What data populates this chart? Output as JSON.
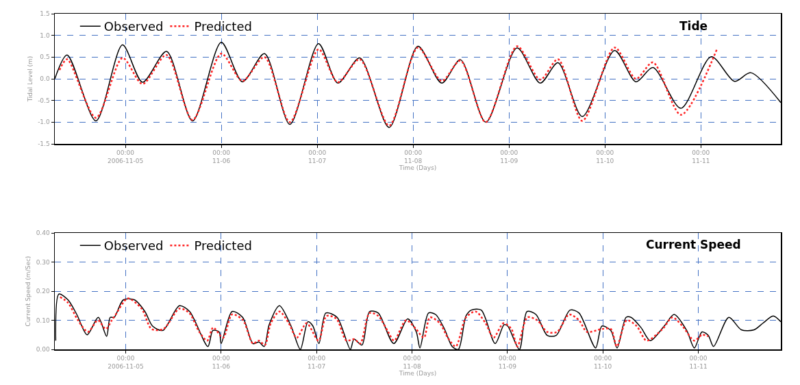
{
  "chart_data": [
    {
      "type": "line",
      "title": "Tide",
      "xlabel": "Time (Days)",
      "ylabel": "Tidal Level (m)",
      "xlim": [
        "2006-11-04T06:20",
        "2006-11-11T20:00"
      ],
      "xticks": [
        {
          "value": "2006-11-05T00:00",
          "label": "00:00\n2006-11-05"
        },
        {
          "value": "2006-11-06T00:00",
          "label": "00:00\n11-06"
        },
        {
          "value": "2006-11-07T00:00",
          "label": "00:00\n11-07"
        },
        {
          "value": "2006-11-08T00:00",
          "label": "00:00\n11-08"
        },
        {
          "value": "2006-11-09T00:00",
          "label": "00:00\n11-09"
        },
        {
          "value": "2006-11-10T00:00",
          "label": "00:00\n11-10"
        },
        {
          "value": "2006-11-11T00:00",
          "label": "00:00\n11-11"
        }
      ],
      "ylim": [
        -1.5,
        1.5
      ],
      "yticks": [
        {
          "value": -1.5,
          "label": "-1.5"
        },
        {
          "value": -1,
          "label": "-1.0"
        },
        {
          "value": -0.5,
          "label": "-0.5"
        },
        {
          "value": 0,
          "label": "0.0"
        },
        {
          "value": 0.5,
          "label": "0.5"
        },
        {
          "value": 1,
          "label": "1.0"
        },
        {
          "value": 1.5,
          "label": "1.5"
        }
      ],
      "grid": true,
      "legend": "top left",
      "series": [
        {
          "name": "Observed",
          "color": "#000000",
          "line_style": "solid",
          "x": [
            "2006-11-04T06:20",
            "2006-11-04T09:25",
            "2006-11-04T16:38",
            "2006-11-04T23:17",
            "2006-11-05T04:17",
            "2006-11-05T10:17",
            "2006-11-05T16:48",
            "2006-11-06T00:00",
            "2006-11-06T05:17",
            "2006-11-06T10:48",
            "2006-11-06T17:09",
            "2006-11-07T00:20",
            "2006-11-07T05:09",
            "2006-11-07T10:38",
            "2006-11-07T18:00",
            "2006-11-08T01:12",
            "2006-11-08T07:09",
            "2006-11-08T11:50",
            "2006-11-08T18:10",
            "2006-11-09T02:00",
            "2006-11-09T07:48",
            "2006-11-09T12:15",
            "2006-11-09T18:20",
            "2006-11-10T02:25",
            "2006-11-10T07:45",
            "2006-11-10T12:00",
            "2006-11-10T19:00",
            "2006-11-11T02:35",
            "2006-11-11T08:25",
            "2006-11-11T12:30",
            "2006-11-11T20:00"
          ],
          "values": [
            0.0,
            0.55,
            -0.97,
            0.78,
            -0.08,
            0.63,
            -0.97,
            0.84,
            -0.07,
            0.58,
            -1.05,
            0.81,
            -0.1,
            0.48,
            -1.12,
            0.75,
            -0.1,
            0.44,
            -1.0,
            0.71,
            -0.1,
            0.37,
            -0.87,
            0.65,
            -0.07,
            0.26,
            -0.68,
            0.51,
            -0.06,
            0.14,
            -0.55
          ]
        },
        {
          "name": "Predicted",
          "color": "#ff2020",
          "line_style": "dotted",
          "x": [
            "2006-11-04T07:30",
            "2006-11-04T09:25",
            "2006-11-04T16:38",
            "2006-11-04T23:17",
            "2006-11-05T04:17",
            "2006-11-05T10:17",
            "2006-11-05T16:48",
            "2006-11-06T00:00",
            "2006-11-06T05:17",
            "2006-11-06T10:48",
            "2006-11-06T17:09",
            "2006-11-07T00:20",
            "2006-11-07T05:09",
            "2006-11-07T10:38",
            "2006-11-07T18:00",
            "2006-11-08T01:12",
            "2006-11-08T07:09",
            "2006-11-08T11:50",
            "2006-11-08T18:10",
            "2006-11-09T02:00",
            "2006-11-09T07:48",
            "2006-11-09T12:15",
            "2006-11-09T18:20",
            "2006-11-10T02:25",
            "2006-11-10T07:45",
            "2006-11-10T12:00",
            "2006-11-10T19:00",
            "2006-11-11T04:00"
          ],
          "values": [
            0.2,
            0.45,
            -0.9,
            0.48,
            -0.12,
            0.55,
            -0.95,
            0.58,
            -0.05,
            0.5,
            -1.0,
            0.68,
            -0.08,
            0.45,
            -1.08,
            0.72,
            -0.05,
            0.42,
            -1.0,
            0.75,
            -0.02,
            0.45,
            -0.97,
            0.72,
            0.0,
            0.38,
            -0.83,
            0.68
          ]
        }
      ]
    },
    {
      "type": "line",
      "title": "Current Speed",
      "xlabel": "Time (Days)",
      "ylabel": "Current Speed (m/Sec)",
      "xlim": [
        "2006-11-04T06:10",
        "2006-11-11T20:45"
      ],
      "xticks": [
        {
          "value": "2006-11-05T00:00",
          "label": "00:00\n2006-11-05"
        },
        {
          "value": "2006-11-06T00:00",
          "label": "00:00\n11-06"
        },
        {
          "value": "2006-11-07T00:00",
          "label": "00:00\n11-07"
        },
        {
          "value": "2006-11-08T00:00",
          "label": "00:00\n11-08"
        },
        {
          "value": "2006-11-09T00:00",
          "label": "00:00\n11-09"
        },
        {
          "value": "2006-11-10T00:00",
          "label": "00:00\n11-10"
        },
        {
          "value": "2006-11-11T00:00",
          "label": "00:00\n11-11"
        }
      ],
      "ylim": [
        0,
        0.4
      ],
      "yticks": [
        {
          "value": 0,
          "label": "0.00"
        },
        {
          "value": 0.1,
          "label": "0.10"
        },
        {
          "value": 0.2,
          "label": "0.20"
        },
        {
          "value": 0.3,
          "label": "0.30"
        },
        {
          "value": 0.4,
          "label": "0.40"
        }
      ],
      "grid": true,
      "legend": "top left",
      "series": [
        {
          "name": "Observed",
          "color": "#000000",
          "line_style": "solid",
          "x": [
            "2006-11-04T06:24",
            "2006-11-04T07:12",
            "2006-11-04T09:30",
            "2006-11-04T11:42",
            "2006-11-04T14:18",
            "2006-11-04T17:06",
            "2006-11-04T19:12",
            "2006-11-04T20:06",
            "2006-11-04T21:06",
            "2006-11-04T23:24",
            "2006-11-05T02:15",
            "2006-11-05T04:50",
            "2006-11-05T06:45",
            "2006-11-05T09:20",
            "2006-11-05T13:30",
            "2006-11-05T16:05",
            "2006-11-05T20:40",
            "2006-11-05T21:55",
            "2006-11-05T23:30",
            "2006-11-06T00:00",
            "2006-11-06T02:45",
            "2006-11-06T05:25",
            "2006-11-06T08:00",
            "2006-11-06T09:30",
            "2006-11-06T10:50",
            "2006-11-06T12:05",
            "2006-11-06T14:40",
            "2006-11-06T17:35",
            "2006-11-06T19:55",
            "2006-11-06T21:50",
            "2006-11-06T23:05",
            "2006-11-07T00:35",
            "2006-11-07T02:20",
            "2006-11-07T05:10",
            "2006-11-07T08:30",
            "2006-11-07T09:25",
            "2006-11-07T11:25",
            "2006-11-07T13:20",
            "2006-11-07T15:30",
            "2006-11-07T19:25",
            "2006-11-07T22:55",
            "2006-11-08T01:05",
            "2006-11-08T02:00",
            "2006-11-08T04:10",
            "2006-11-08T05:55",
            "2006-11-08T08:10",
            "2006-11-08T10:05",
            "2006-11-08T11:40",
            "2006-11-08T13:35",
            "2006-11-08T14:55",
            "2006-11-08T17:25",
            "2006-11-08T20:55",
            "2006-11-08T23:10",
            "2006-11-09T00:05",
            "2006-11-09T03:00",
            "2006-11-09T04:55",
            "2006-11-09T07:10",
            "2006-11-09T10:00",
            "2006-11-09T12:15",
            "2006-11-09T15:45",
            "2006-11-09T18:00",
            "2006-11-09T22:10",
            "2006-11-09T23:45",
            "2006-11-10T02:00",
            "2006-11-10T03:35",
            "2006-11-10T05:50",
            "2006-11-10T07:05",
            "2006-11-10T09:35",
            "2006-11-10T11:55",
            "2006-11-10T15:25",
            "2006-11-10T17:55",
            "2006-11-10T21:05",
            "2006-11-10T23:00",
            "2006-11-11T00:55",
            "2006-11-11T02:30",
            "2006-11-11T03:50",
            "2006-11-11T07:40",
            "2006-11-11T10:50",
            "2006-11-11T14:00",
            "2006-11-11T16:15",
            "2006-11-11T18:50",
            "2006-11-11T20:45"
          ],
          "values": [
            0.03,
            0.19,
            0.17,
            0.12,
            0.05,
            0.11,
            0.045,
            0.11,
            0.11,
            0.17,
            0.17,
            0.13,
            0.08,
            0.065,
            0.15,
            0.13,
            0.01,
            0.065,
            0.06,
            0.02,
            0.13,
            0.11,
            0.02,
            0.025,
            0.01,
            0.085,
            0.15,
            0.08,
            0.0,
            0.095,
            0.08,
            0.02,
            0.125,
            0.11,
            0.0,
            0.035,
            0.015,
            0.13,
            0.125,
            0.02,
            0.105,
            0.06,
            0.005,
            0.125,
            0.12,
            0.07,
            0.01,
            0.0,
            0.115,
            0.135,
            0.135,
            0.02,
            0.085,
            0.08,
            0.0,
            0.13,
            0.12,
            0.048,
            0.048,
            0.135,
            0.125,
            0.005,
            0.08,
            0.065,
            0.005,
            0.11,
            0.11,
            0.075,
            0.03,
            0.08,
            0.12,
            0.065,
            0.005,
            0.06,
            0.048,
            0.01,
            0.11,
            0.067,
            0.067,
            0.09,
            0.115,
            0.095
          ]
        },
        {
          "name": "Predicted",
          "color": "#ff2020",
          "line_style": "dotted",
          "x": [
            "2006-11-04T07:30",
            "2006-11-04T09:30",
            "2006-11-04T12:00",
            "2006-11-04T14:30",
            "2006-11-04T17:00",
            "2006-11-04T19:00",
            "2006-11-04T20:30",
            "2006-11-04T21:30",
            "2006-11-05T00:30",
            "2006-11-05T04:00",
            "2006-11-05T06:30",
            "2006-11-05T09:30",
            "2006-11-05T13:30",
            "2006-11-05T16:00",
            "2006-11-05T18:30",
            "2006-11-05T20:30",
            "2006-11-05T22:00",
            "2006-11-06T00:30",
            "2006-11-06T02:45",
            "2006-11-06T05:30",
            "2006-11-06T08:00",
            "2006-11-06T09:30",
            "2006-11-06T11:00",
            "2006-11-06T12:30",
            "2006-11-06T14:40",
            "2006-11-06T17:00",
            "2006-11-06T19:00",
            "2006-11-06T21:30",
            "2006-11-07T00:30",
            "2006-11-07T02:30",
            "2006-11-07T05:00",
            "2006-11-07T07:30",
            "2006-11-07T09:30",
            "2006-11-07T11:00",
            "2006-11-07T13:20",
            "2006-11-07T15:30",
            "2006-11-07T18:00",
            "2006-11-07T19:30",
            "2006-11-07T22:30",
            "2006-11-08T01:00",
            "2006-11-08T03:00",
            "2006-11-08T04:30",
            "2006-11-08T07:00",
            "2006-11-08T09:00",
            "2006-11-08T11:00",
            "2006-11-08T13:35",
            "2006-11-08T16:00",
            "2006-11-08T18:30",
            "2006-11-08T20:30",
            "2006-11-08T23:00",
            "2006-11-09T01:00",
            "2006-11-09T02:30",
            "2006-11-09T05:00",
            "2006-11-09T07:30",
            "2006-11-09T10:00",
            "2006-11-09T12:30",
            "2006-11-09T15:30",
            "2006-11-09T18:00",
            "2006-11-09T20:00",
            "2006-11-09T23:45",
            "2006-11-10T02:00",
            "2006-11-10T03:30",
            "2006-11-10T06:00",
            "2006-11-10T08:30",
            "2006-11-10T11:00",
            "2006-11-10T15:00",
            "2006-11-10T17:30",
            "2006-11-10T20:00",
            "2006-11-10T23:00",
            "2006-11-11T00:55",
            "2006-11-11T02:30"
          ],
          "values": [
            0.18,
            0.16,
            0.1,
            0.06,
            0.1,
            0.07,
            0.1,
            0.12,
            0.175,
            0.14,
            0.07,
            0.07,
            0.14,
            0.125,
            0.06,
            0.03,
            0.075,
            0.04,
            0.12,
            0.1,
            0.02,
            0.03,
            0.015,
            0.09,
            0.13,
            0.09,
            0.04,
            0.09,
            0.03,
            0.115,
            0.105,
            0.03,
            0.035,
            0.02,
            0.125,
            0.115,
            0.06,
            0.03,
            0.1,
            0.07,
            0.04,
            0.11,
            0.09,
            0.04,
            0.01,
            0.11,
            0.13,
            0.09,
            0.04,
            0.09,
            0.07,
            0.01,
            0.11,
            0.1,
            0.06,
            0.06,
            0.12,
            0.1,
            0.06,
            0.07,
            0.07,
            0.01,
            0.1,
            0.08,
            0.03,
            0.07,
            0.11,
            0.08,
            0.03,
            0.05,
            0.045
          ]
        }
      ]
    }
  ]
}
